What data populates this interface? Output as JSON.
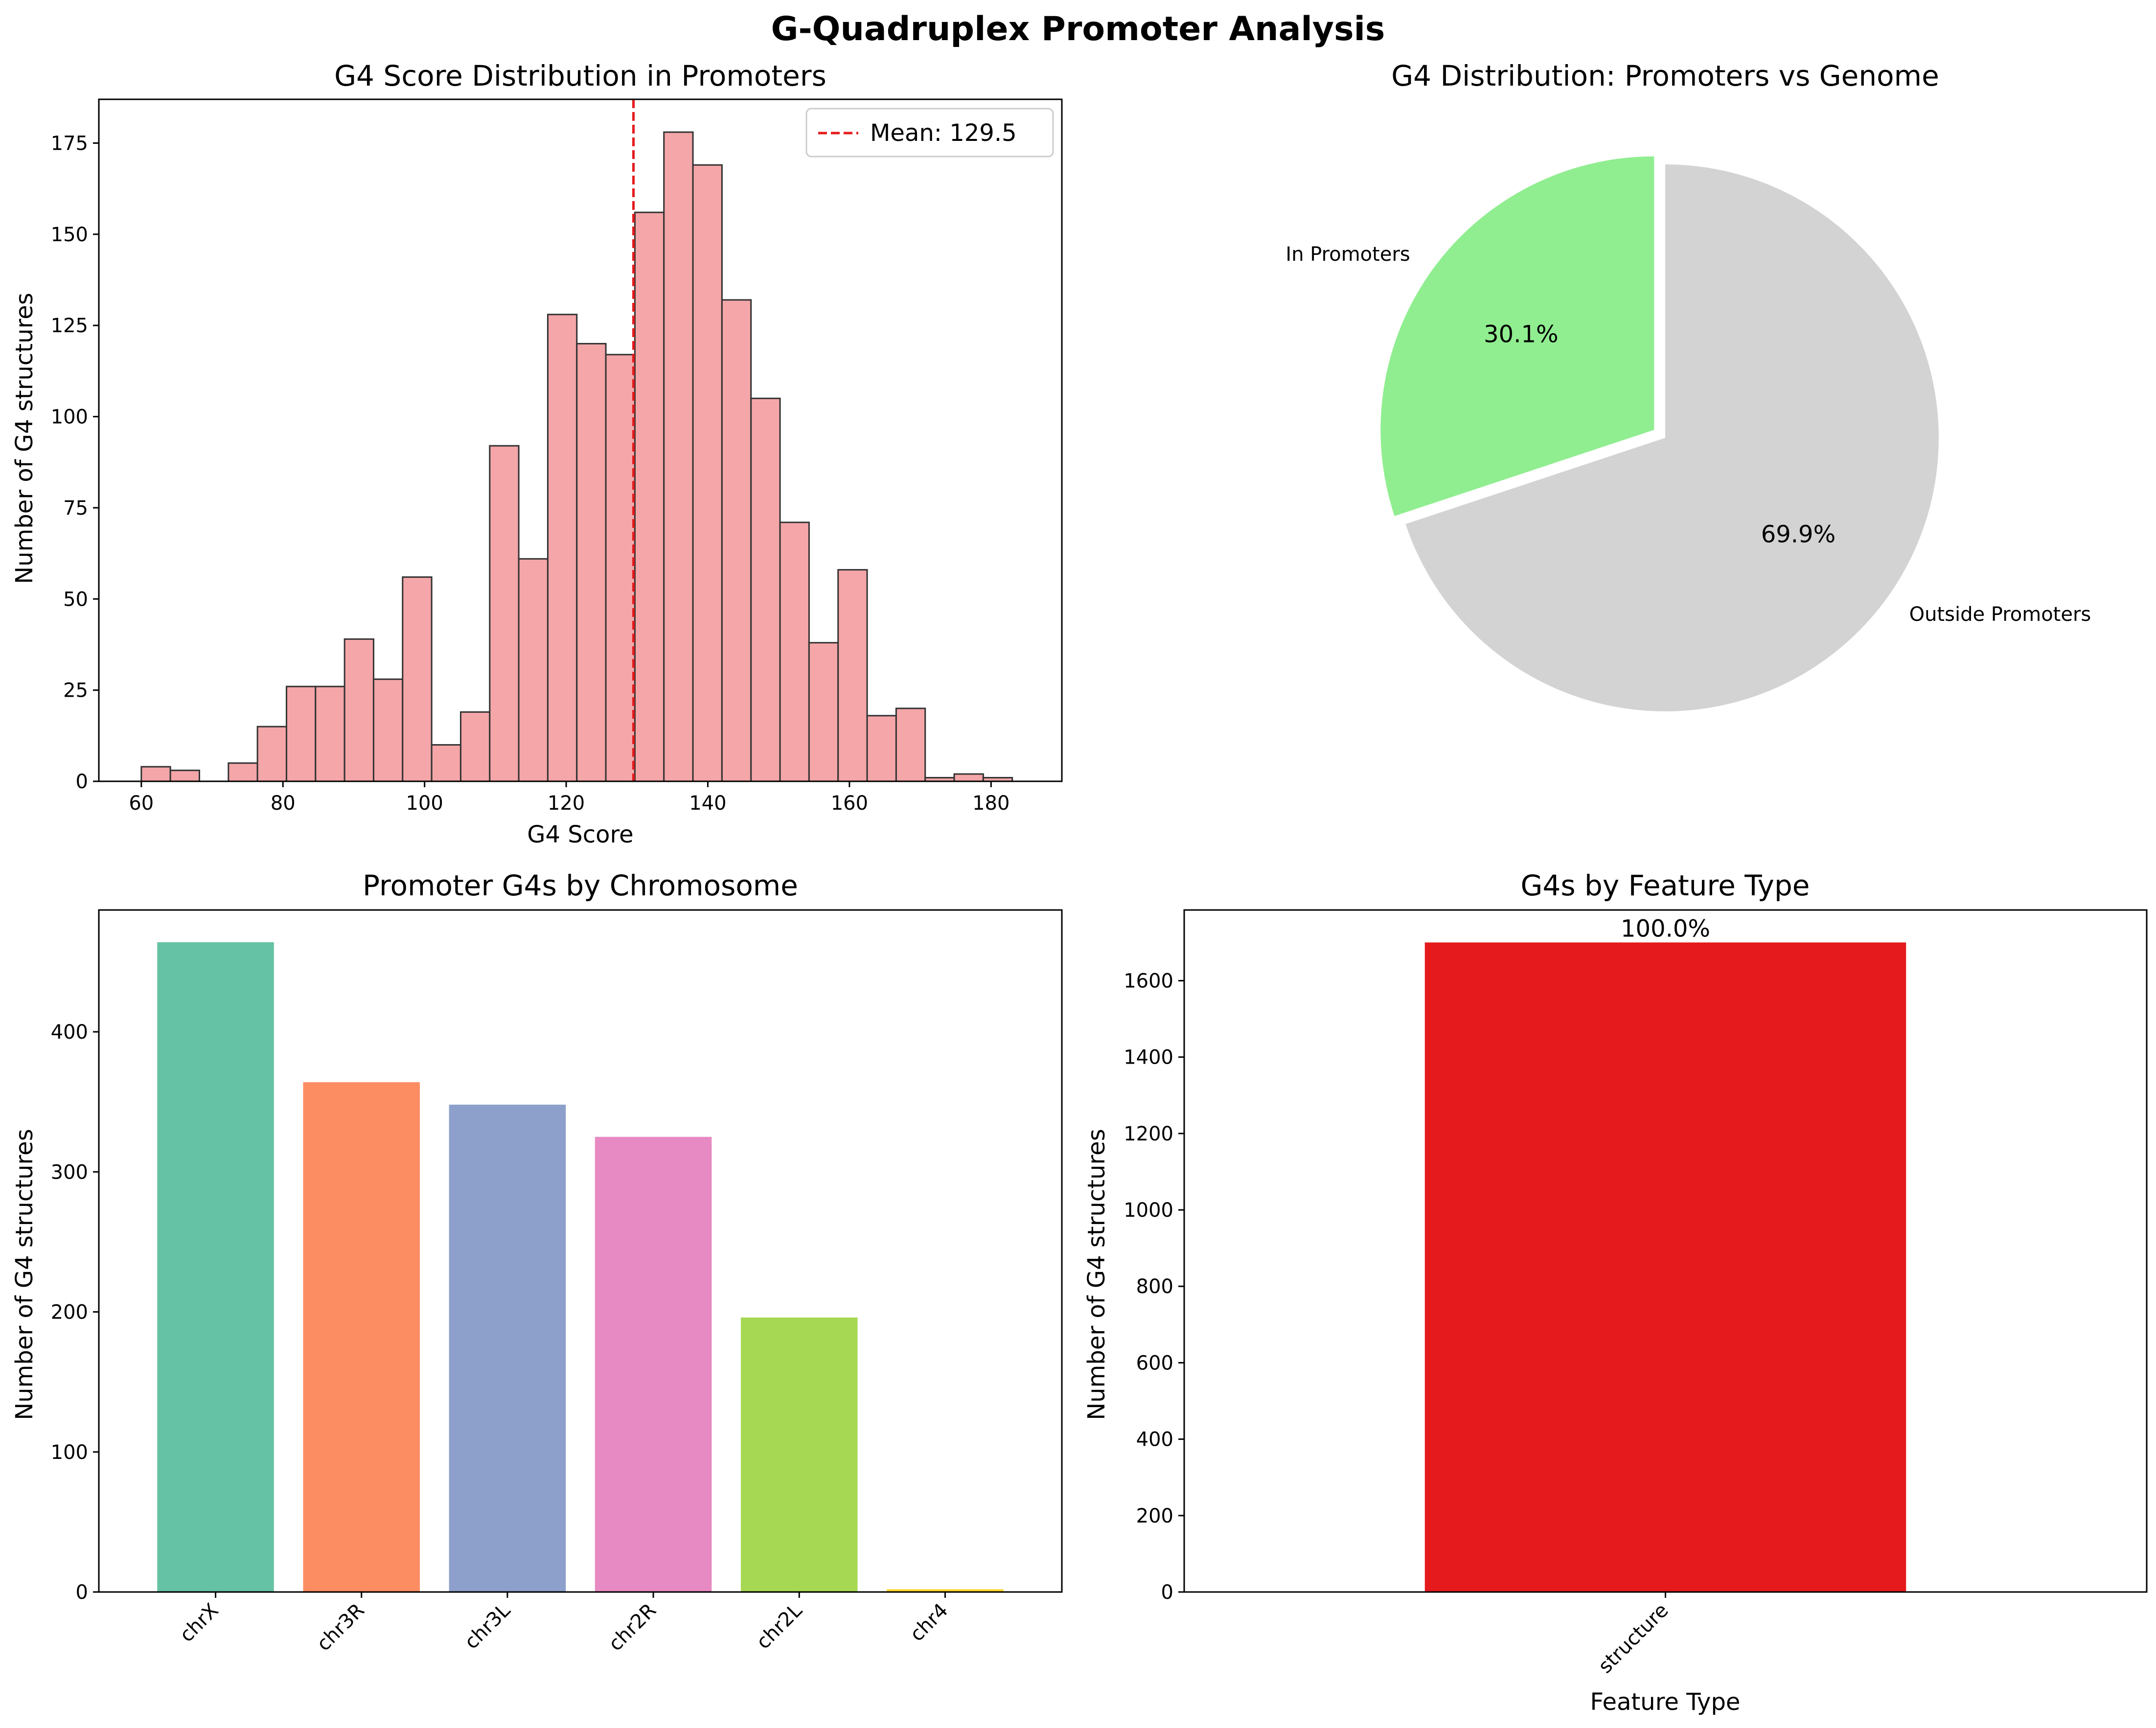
{
  "figure": {
    "title": "G-Quadruplex Promoter Analysis"
  },
  "chart_data": [
    {
      "type": "histogram",
      "title": "G4 Score Distribution in Promoters",
      "xlabel": "G4 Score",
      "ylabel": "Number of G4 structures",
      "xlim": [
        54,
        190
      ],
      "ylim": [
        0,
        187
      ],
      "xticks": [
        60,
        80,
        100,
        120,
        140,
        160,
        180
      ],
      "yticks": [
        0,
        25,
        50,
        75,
        100,
        125,
        150,
        175
      ],
      "bin_start": 60,
      "bin_width": 4.1,
      "counts": [
        4,
        3,
        0,
        5,
        15,
        26,
        26,
        39,
        28,
        56,
        10,
        19,
        92,
        61,
        128,
        120,
        117,
        156,
        178,
        169,
        132,
        105,
        71,
        38,
        58,
        18,
        20,
        1,
        2,
        1
      ],
      "bar_color": "#f4a6a8",
      "edge_color": "#333333",
      "mean_line": {
        "value": 129.5,
        "label": "Mean: 129.5",
        "color": "#e41a1c"
      },
      "legend_position": "top-right"
    },
    {
      "type": "pie",
      "title": "G4 Distribution: Promoters vs Genome",
      "slices": [
        {
          "label": "In Promoters",
          "value": 30.1,
          "pct_label": "30.1%",
          "color": "#90ee90",
          "exploded": true
        },
        {
          "label": "Outside Promoters",
          "value": 69.9,
          "pct_label": "69.9%",
          "color": "#d3d3d3",
          "exploded": false
        }
      ]
    },
    {
      "type": "bar",
      "title": "Promoter G4s by Chromosome",
      "xlabel": "",
      "ylabel": "Number of G4 structures",
      "categories": [
        "chrX",
        "chr3R",
        "chr3L",
        "chr2R",
        "chr2L",
        "chr4"
      ],
      "values": [
        464,
        364,
        348,
        325,
        196,
        2
      ],
      "colors": [
        "#66c2a5",
        "#fc8d62",
        "#8da0cb",
        "#e78ac3",
        "#a6d854",
        "#ffd92f"
      ],
      "ylim": [
        0,
        487
      ],
      "yticks": [
        0,
        100,
        200,
        300,
        400
      ]
    },
    {
      "type": "bar",
      "title": "G4s by Feature Type",
      "xlabel": "Feature Type",
      "ylabel": "Number of G4 structures",
      "categories": [
        "structure"
      ],
      "values": [
        1700
      ],
      "data_labels": [
        "100.0%"
      ],
      "colors": [
        "#e41a1c"
      ],
      "ylim": [
        0,
        1785
      ],
      "yticks": [
        0,
        200,
        400,
        600,
        800,
        1000,
        1200,
        1400,
        1600
      ]
    }
  ]
}
